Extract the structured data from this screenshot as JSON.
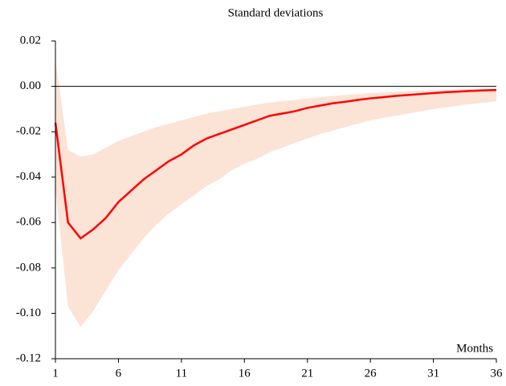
{
  "chart_data": {
    "type": "line",
    "title": "Standard deviations",
    "x_label": "Months",
    "x": [
      1,
      2,
      3,
      4,
      5,
      6,
      7,
      8,
      9,
      10,
      11,
      12,
      13,
      14,
      15,
      16,
      17,
      18,
      19,
      20,
      21,
      22,
      23,
      24,
      25,
      26,
      27,
      28,
      29,
      30,
      31,
      32,
      33,
      34,
      35,
      36
    ],
    "series": [
      {
        "color": "#ff0000",
        "values": [
          -0.016,
          -0.06,
          -0.067,
          -0.063,
          -0.058,
          -0.051,
          -0.046,
          -0.041,
          -0.037,
          -0.033,
          -0.03,
          -0.026,
          -0.023,
          -0.021,
          -0.019,
          -0.017,
          -0.015,
          -0.013,
          -0.012,
          -0.011,
          -0.0095,
          -0.0085,
          -0.0075,
          -0.0068,
          -0.006,
          -0.0053,
          -0.0048,
          -0.0042,
          -0.0038,
          -0.0034,
          -0.003,
          -0.0026,
          -0.0023,
          -0.002,
          -0.0018,
          -0.0016
        ]
      }
    ],
    "band": {
      "color": "#fbe3d6",
      "upper": [
        0.012,
        -0.028,
        -0.031,
        -0.03,
        -0.027,
        -0.024,
        -0.022,
        -0.02,
        -0.018,
        -0.0165,
        -0.015,
        -0.0135,
        -0.012,
        -0.011,
        -0.01,
        -0.009,
        -0.008,
        -0.0072,
        -0.0065,
        -0.006,
        -0.0053,
        -0.0048,
        -0.0043,
        -0.0038,
        -0.0034,
        -0.003,
        -0.0027,
        -0.0024,
        -0.0021,
        -0.0019,
        -0.0017,
        -0.0015,
        -0.0013,
        -0.0012,
        -0.0011,
        -0.001
      ],
      "lower": [
        -0.045,
        -0.097,
        -0.106,
        -0.099,
        -0.09,
        -0.081,
        -0.074,
        -0.067,
        -0.061,
        -0.056,
        -0.052,
        -0.048,
        -0.044,
        -0.041,
        -0.037,
        -0.034,
        -0.032,
        -0.029,
        -0.027,
        -0.025,
        -0.023,
        -0.021,
        -0.0195,
        -0.018,
        -0.0165,
        -0.015,
        -0.014,
        -0.013,
        -0.012,
        -0.011,
        -0.01,
        -0.0093,
        -0.0085,
        -0.0078,
        -0.0072,
        -0.0066
      ]
    },
    "xlim": [
      1,
      36
    ],
    "xticks": [
      1,
      6,
      11,
      16,
      21,
      26,
      31,
      36
    ],
    "ylim": [
      -0.12,
      0.02
    ],
    "yticks": [
      0.02,
      {
        "value": 0,
        "label": "0.00"
      },
      -0.02,
      -0.04,
      -0.06,
      -0.08,
      {
        "value": -0.1,
        "label": "-0.10"
      },
      -0.12
    ],
    "zero_line": true,
    "grid": false
  }
}
